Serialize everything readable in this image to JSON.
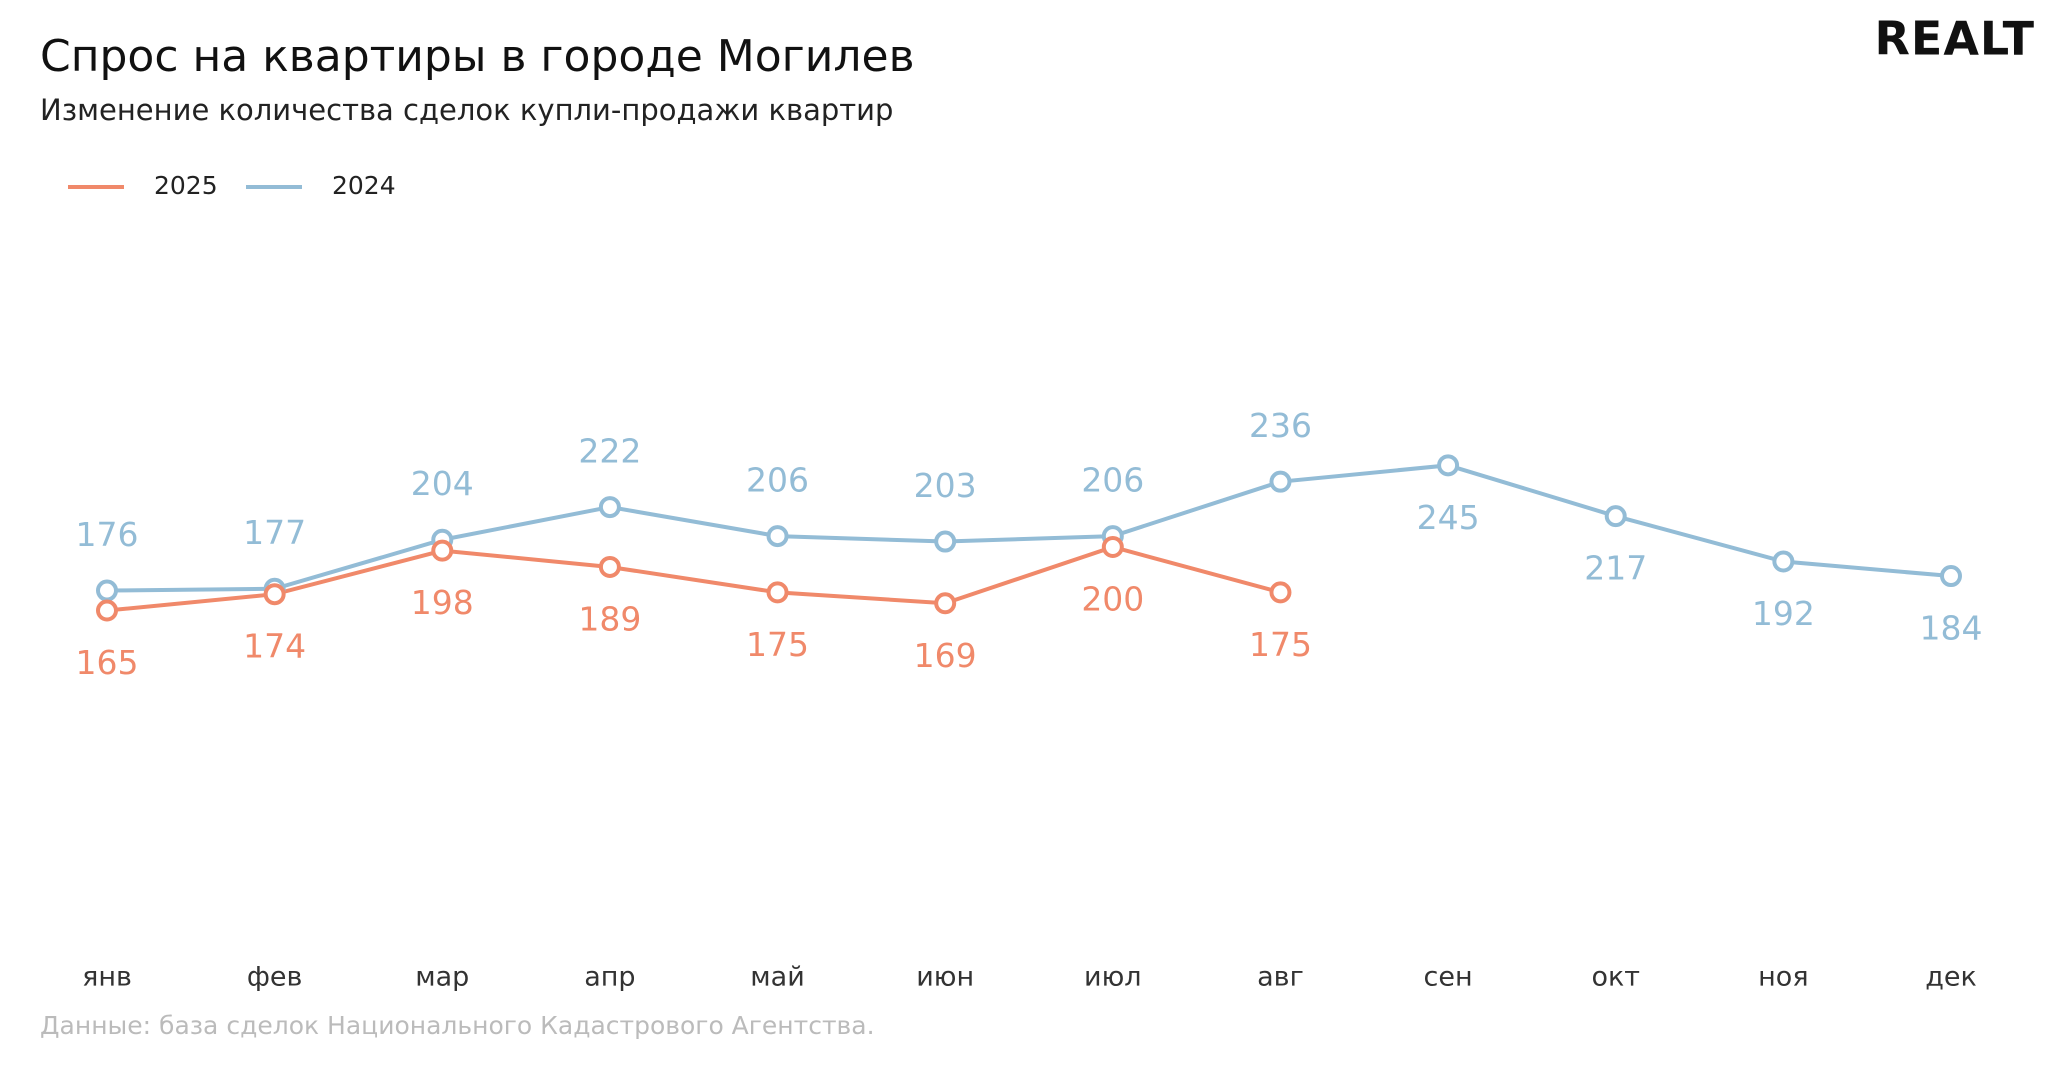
{
  "logo": "REALT",
  "chart_data": {
    "type": "line",
    "title": "Спрос на квартиры в городе Могилев",
    "subtitle": "Изменение количества сделок купли-продажи квартир",
    "note": "Данные: база сделок Национального Кадастрового Агентства.",
    "categories": [
      "янв",
      "фев",
      "мар",
      "апр",
      "май",
      "июн",
      "июл",
      "авг",
      "сен",
      "окт",
      "ноя",
      "дек"
    ],
    "ylim": [
      0,
      400
    ],
    "series": [
      {
        "name": "2025",
        "color": "#f0896a",
        "values": [
          165,
          174,
          198,
          189,
          175,
          169,
          200,
          175,
          null,
          null,
          null,
          null
        ]
      },
      {
        "name": "2024",
        "color": "#93bcd6",
        "values": [
          176,
          177,
          204,
          222,
          206,
          203,
          206,
          236,
          245,
          217,
          192,
          184
        ]
      }
    ]
  }
}
